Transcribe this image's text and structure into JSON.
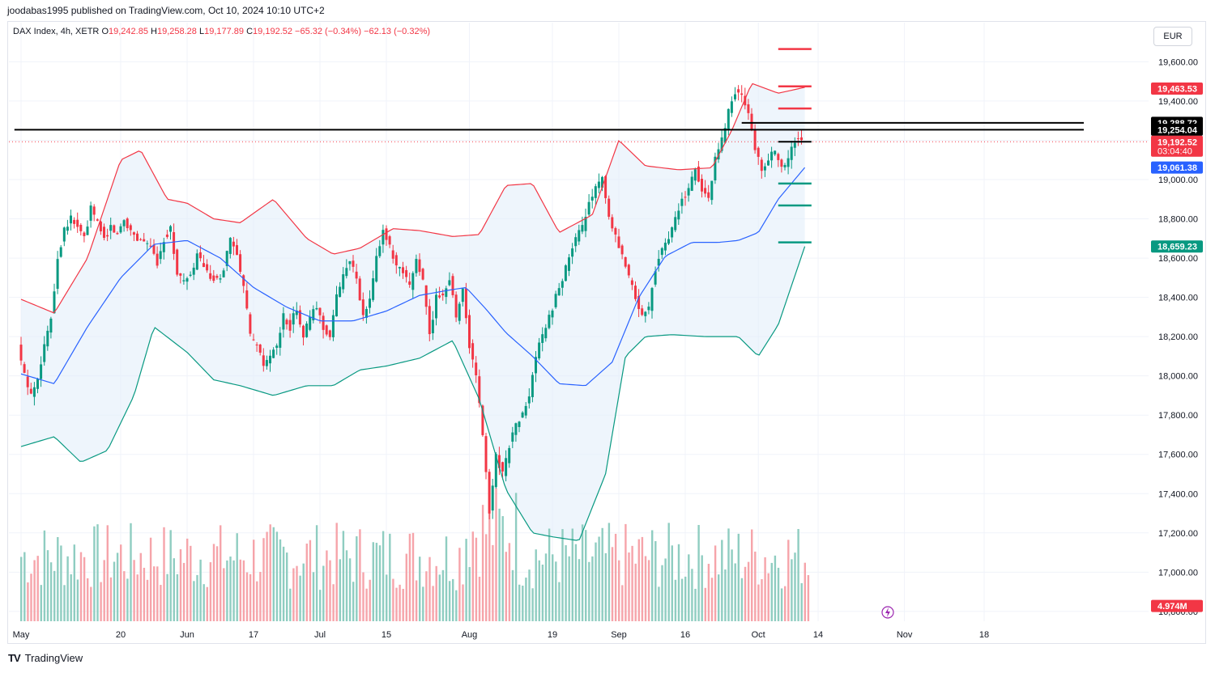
{
  "header": {
    "published": "joodabas1995 published on TradingView.com, Oct 10, 2024 10:10 UTC+2"
  },
  "legend": {
    "symbol": "DAX Index, 4h, XETR",
    "open_label": "O",
    "open": "19,242.85",
    "high_label": "H",
    "high": "19,258.28",
    "low_label": "L",
    "low": "19,177.89",
    "close_label": "C",
    "close": "19,192.52",
    "change": "−65.32 (−0.34%)",
    "change2": "−62.13 (−0.32%)"
  },
  "currency_button": "EUR",
  "footer": {
    "brand": "TradingView",
    "logo": "TV"
  },
  "colors": {
    "up": "#089981",
    "down": "#f23645",
    "basis": "#2962ff",
    "upper_band": "#f23645",
    "lower_band": "#089981",
    "band_fill": "#e3effa",
    "vol_up": "#8fcdc1",
    "vol_down": "#f6a4aa",
    "black": "#000000"
  },
  "chart_data": {
    "type": "candlestick",
    "symbol": "DAX Index",
    "interval": "4h",
    "exchange": "XETR",
    "ylim": [
      16750,
      19750
    ],
    "y_ticks": [
      "16,800.00",
      "17,000.00",
      "17,200.00",
      "17,400.00",
      "17,600.00",
      "17,800.00",
      "18,000.00",
      "18,200.00",
      "18,400.00",
      "18,600.00",
      "18,800.00",
      "19,000.00",
      "19,200.00",
      "19,400.00",
      "19,600.00"
    ],
    "x_ticks": [
      {
        "label": "May",
        "t": 0
      },
      {
        "label": "20",
        "t": 15
      },
      {
        "label": "Jun",
        "t": 25
      },
      {
        "label": "17",
        "t": 35
      },
      {
        "label": "Jul",
        "t": 45
      },
      {
        "label": "15",
        "t": 55
      },
      {
        "label": "Aug",
        "t": 67.5
      },
      {
        "label": "19",
        "t": 80
      },
      {
        "label": "Sep",
        "t": 90
      },
      {
        "label": "16",
        "t": 100
      },
      {
        "label": "Oct",
        "t": 111
      },
      {
        "label": "14",
        "t": 120
      },
      {
        "label": "Nov",
        "t": 133
      },
      {
        "label": "18",
        "t": 145
      }
    ],
    "close_path": [
      [
        0,
        18150
      ],
      [
        1,
        18000
      ],
      [
        2,
        17900
      ],
      [
        3,
        18000
      ],
      [
        4,
        18150
      ],
      [
        5,
        18300
      ],
      [
        6,
        18600
      ],
      [
        7,
        18750
      ],
      [
        8,
        18800
      ],
      [
        9,
        18760
      ],
      [
        10,
        18700
      ],
      [
        11,
        18850
      ],
      [
        12,
        18780
      ],
      [
        13,
        18700
      ],
      [
        14,
        18760
      ],
      [
        15,
        18720
      ],
      [
        16,
        18800
      ],
      [
        17,
        18740
      ],
      [
        18,
        18700
      ],
      [
        19,
        18690
      ],
      [
        20,
        18650
      ],
      [
        21,
        18580
      ],
      [
        22,
        18700
      ],
      [
        23,
        18750
      ],
      [
        24,
        18520
      ],
      [
        25,
        18480
      ],
      [
        26,
        18500
      ],
      [
        27,
        18620
      ],
      [
        28,
        18550
      ],
      [
        29,
        18500
      ],
      [
        30,
        18480
      ],
      [
        31,
        18550
      ],
      [
        32,
        18700
      ],
      [
        33,
        18600
      ],
      [
        34,
        18450
      ],
      [
        35,
        18200
      ],
      [
        36,
        18150
      ],
      [
        37,
        18050
      ],
      [
        38,
        18100
      ],
      [
        39,
        18150
      ],
      [
        40,
        18300
      ],
      [
        41,
        18250
      ],
      [
        42,
        18350
      ],
      [
        43,
        18200
      ],
      [
        44,
        18300
      ],
      [
        45,
        18350
      ],
      [
        46,
        18250
      ],
      [
        47,
        18200
      ],
      [
        48,
        18400
      ],
      [
        49,
        18520
      ],
      [
        50,
        18600
      ],
      [
        51,
        18480
      ],
      [
        52,
        18300
      ],
      [
        53,
        18380
      ],
      [
        54,
        18600
      ],
      [
        55,
        18750
      ],
      [
        56,
        18650
      ],
      [
        57,
        18550
      ],
      [
        58,
        18520
      ],
      [
        59,
        18450
      ],
      [
        60,
        18600
      ],
      [
        61,
        18480
      ],
      [
        62,
        18200
      ],
      [
        63,
        18400
      ],
      [
        64,
        18420
      ],
      [
        65,
        18500
      ],
      [
        66,
        18300
      ],
      [
        67,
        18450
      ],
      [
        68,
        18150
      ],
      [
        69,
        18000
      ],
      [
        70,
        17700
      ],
      [
        71,
        17300
      ],
      [
        72,
        17600
      ],
      [
        73,
        17500
      ],
      [
        74,
        17650
      ],
      [
        75,
        17750
      ],
      [
        76,
        17800
      ],
      [
        77,
        17900
      ],
      [
        78,
        18100
      ],
      [
        79,
        18200
      ],
      [
        80,
        18300
      ],
      [
        81,
        18400
      ],
      [
        82,
        18500
      ],
      [
        83,
        18600
      ],
      [
        84,
        18700
      ],
      [
        85,
        18750
      ],
      [
        86,
        18900
      ],
      [
        87,
        18950
      ],
      [
        88,
        19000
      ],
      [
        89,
        18800
      ],
      [
        90,
        18700
      ],
      [
        91,
        18600
      ],
      [
        92,
        18500
      ],
      [
        93,
        18400
      ],
      [
        94,
        18300
      ],
      [
        95,
        18350
      ],
      [
        96,
        18550
      ],
      [
        97,
        18650
      ],
      [
        98,
        18700
      ],
      [
        99,
        18800
      ],
      [
        100,
        18900
      ],
      [
        101,
        18950
      ],
      [
        102,
        19050
      ],
      [
        103,
        18950
      ],
      [
        104,
        18900
      ],
      [
        105,
        19100
      ],
      [
        106,
        19200
      ],
      [
        107,
        19350
      ],
      [
        108,
        19450
      ],
      [
        109,
        19420
      ],
      [
        110,
        19350
      ],
      [
        111,
        19150
      ],
      [
        112,
        19050
      ],
      [
        113,
        19100
      ],
      [
        114,
        19150
      ],
      [
        115,
        19050
      ],
      [
        116,
        19100
      ],
      [
        117,
        19200
      ],
      [
        118,
        19192.52
      ]
    ],
    "bollinger": {
      "upper": [
        [
          0,
          18390
        ],
        [
          5,
          18320
        ],
        [
          10,
          18600
        ],
        [
          15,
          19100
        ],
        [
          18,
          19150
        ],
        [
          22,
          18900
        ],
        [
          25,
          18880
        ],
        [
          29,
          18800
        ],
        [
          33,
          18780
        ],
        [
          38,
          18900
        ],
        [
          43,
          18700
        ],
        [
          47,
          18620
        ],
        [
          51,
          18650
        ],
        [
          56,
          18750
        ],
        [
          60,
          18740
        ],
        [
          65,
          18710
        ],
        [
          69,
          18720
        ],
        [
          73,
          18970
        ],
        [
          77,
          18980
        ],
        [
          81,
          18730
        ],
        [
          86,
          18820
        ],
        [
          90,
          19200
        ],
        [
          94,
          19070
        ],
        [
          99,
          19050
        ],
        [
          104,
          19060
        ],
        [
          107,
          19250
        ],
        [
          110,
          19490
        ],
        [
          114,
          19440
        ],
        [
          118,
          19470
        ]
      ],
      "basis": [
        [
          0,
          18010
        ],
        [
          5,
          17960
        ],
        [
          10,
          18250
        ],
        [
          15,
          18500
        ],
        [
          20,
          18670
        ],
        [
          25,
          18690
        ],
        [
          30,
          18600
        ],
        [
          35,
          18450
        ],
        [
          40,
          18350
        ],
        [
          45,
          18280
        ],
        [
          50,
          18280
        ],
        [
          55,
          18330
        ],
        [
          60,
          18410
        ],
        [
          65,
          18440
        ],
        [
          67,
          18450
        ],
        [
          70,
          18340
        ],
        [
          73,
          18220
        ],
        [
          77,
          18100
        ],
        [
          81,
          17960
        ],
        [
          85,
          17950
        ],
        [
          89,
          18070
        ],
        [
          93,
          18400
        ],
        [
          97,
          18610
        ],
        [
          101,
          18680
        ],
        [
          105,
          18680
        ],
        [
          108,
          18690
        ],
        [
          111,
          18730
        ],
        [
          114,
          18900
        ],
        [
          118,
          19061.38
        ]
      ],
      "lower": [
        [
          0,
          17640
        ],
        [
          5,
          17690
        ],
        [
          9,
          17560
        ],
        [
          13,
          17620
        ],
        [
          17,
          17900
        ],
        [
          20,
          18250
        ],
        [
          25,
          18120
        ],
        [
          29,
          17980
        ],
        [
          33,
          17950
        ],
        [
          38,
          17900
        ],
        [
          43,
          17950
        ],
        [
          47,
          17950
        ],
        [
          51,
          18030
        ],
        [
          55,
          18050
        ],
        [
          60,
          18090
        ],
        [
          65,
          18180
        ],
        [
          69,
          17880
        ],
        [
          73,
          17420
        ],
        [
          77,
          17200
        ],
        [
          80,
          17180
        ],
        [
          84,
          17160
        ],
        [
          88,
          17500
        ],
        [
          91,
          18100
        ],
        [
          94,
          18200
        ],
        [
          98,
          18210
        ],
        [
          103,
          18200
        ],
        [
          108,
          18200
        ],
        [
          111,
          18100
        ],
        [
          114,
          18260
        ],
        [
          118,
          18659.23
        ]
      ]
    },
    "horizontal_lines": [
      {
        "color": "black",
        "price": 19254.04,
        "t_start": -1,
        "t_end": 160
      },
      {
        "color": "black",
        "price": 19288.72,
        "t_start": 108.5,
        "t_end": 160
      },
      {
        "color": "black",
        "price": 19192.52,
        "t_start": 114,
        "t_end": 119
      }
    ],
    "target_lines": [
      {
        "color": "red",
        "price": 19665,
        "t_start": 114,
        "t_end": 119
      },
      {
        "color": "red",
        "price": 19475,
        "t_start": 114,
        "t_end": 119
      },
      {
        "color": "red",
        "price": 19362,
        "t_start": 114,
        "t_end": 119
      },
      {
        "color": "green",
        "price": 18980,
        "t_start": 114,
        "t_end": 119
      },
      {
        "color": "green",
        "price": 18868,
        "t_start": 114,
        "t_end": 119
      },
      {
        "color": "green",
        "price": 18680,
        "t_start": 114,
        "t_end": 119
      }
    ],
    "price_labels": [
      {
        "text": "19,463.53",
        "price": 19463.53,
        "bg": "#f23645"
      },
      {
        "text": "19,288.72",
        "price": 19288.72,
        "bg": "#000000"
      },
      {
        "text": "19,254.04",
        "price": 19254.04,
        "bg": "#000000"
      },
      {
        "text": "19,192.52",
        "price": 19192.52,
        "bg": "#f23645",
        "sub": "03:04:40"
      },
      {
        "text": "19,061.38",
        "price": 19061.38,
        "bg": "#2962ff"
      },
      {
        "text": "18,659.23",
        "price": 18659.23,
        "bg": "#089981"
      },
      {
        "text": "4.974M",
        "price": 16828,
        "bg": "#f23645"
      }
    ],
    "volume_label": "4.974M",
    "countdown": "03:04:40"
  }
}
